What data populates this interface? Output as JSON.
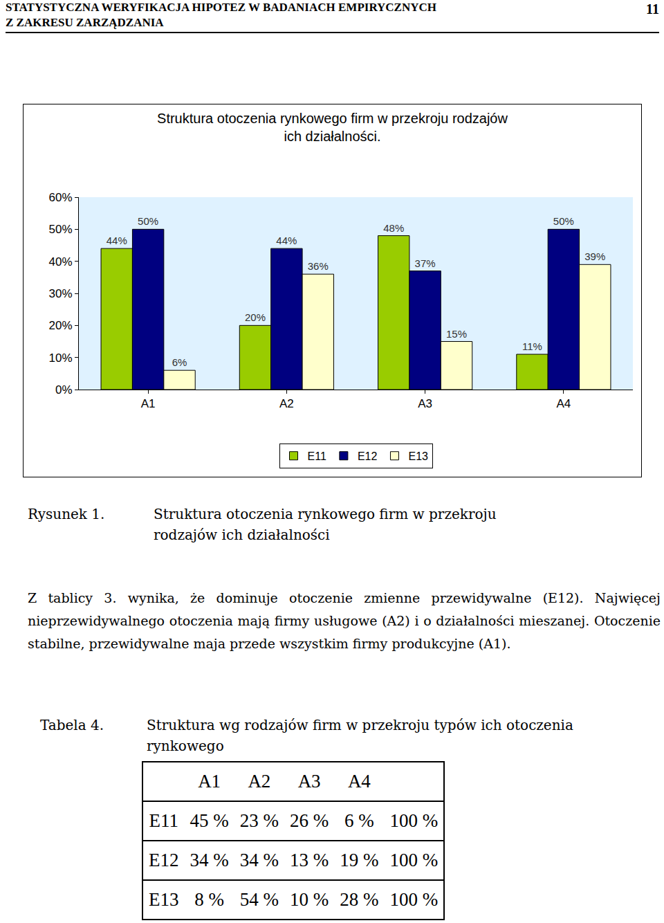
{
  "header": {
    "lines": [
      "STATYSTYCZNA WERYFIKACJA HIPOTEZ W BADANIACH EMPIRYCZNYCH",
      "Z ZAKRESU ZARZĄDZANIA"
    ],
    "page": "11"
  },
  "chart_data": {
    "type": "bar",
    "title": "Struktura otoczenia rynkowego firm w przekroju rodzajów ich działalności.",
    "categories": [
      "A1",
      "A2",
      "A3",
      "A4"
    ],
    "series": [
      {
        "name": "E11",
        "color": "#99cc00",
        "values": [
          44,
          20,
          48,
          11
        ],
        "value_labels": [
          "44%",
          "20%",
          "48%",
          "11%"
        ]
      },
      {
        "name": "E12",
        "color": "#000080",
        "values": [
          50,
          44,
          37,
          50
        ],
        "value_labels": [
          "50%",
          "44%",
          "37%",
          "50%"
        ]
      },
      {
        "name": "E13",
        "color": "#ffffcc",
        "values": [
          6,
          36,
          15,
          39
        ],
        "value_labels": [
          "6%",
          "36%",
          "15%",
          "39%"
        ]
      }
    ],
    "ylim": [
      0,
      60
    ],
    "yticks": [
      {
        "value": 0,
        "label": "0%"
      },
      {
        "value": 10,
        "label": "10%"
      },
      {
        "value": 20,
        "label": "20%"
      },
      {
        "value": 30,
        "label": "30%"
      },
      {
        "value": 40,
        "label": "40%"
      },
      {
        "value": 50,
        "label": "50%"
      },
      {
        "value": 60,
        "label": "60%"
      }
    ],
    "grid": false,
    "legend": "bottom",
    "data_labels": true
  },
  "figure_caption": {
    "label": "Rysunek 1.",
    "text": "Struktura otoczenia rynkowego firm w przekroju rodzajów ich działalności"
  },
  "paragraph": "Z tablicy 3. wynika, że dominuje otoczenie zmienne przewidywalne (E12). Najwięcej nieprzewidywalnego otoczenia mają firmy usługowe (A2) i o działalności mieszanej. Otoczenie stabilne, przewidywalne maja przede wszystkim firmy produkcyjne (A1).",
  "table_caption": {
    "label": "Tabela 4.",
    "text": "Struktura wg rodzajów firm w przekroju typów ich otoczenia rynkowego"
  },
  "table": {
    "columns": [
      "A1",
      "A2",
      "A3",
      "A4"
    ],
    "rows": [
      [
        "E11",
        "45 %",
        "23 %",
        "26 %",
        "6 %",
        "100 %"
      ],
      [
        "E12",
        "34 %",
        "34 %",
        "13 %",
        "19 %",
        "100 %"
      ],
      [
        "E13",
        "8 %",
        "54 %",
        "10 %",
        "28 %",
        "100 %"
      ]
    ]
  }
}
